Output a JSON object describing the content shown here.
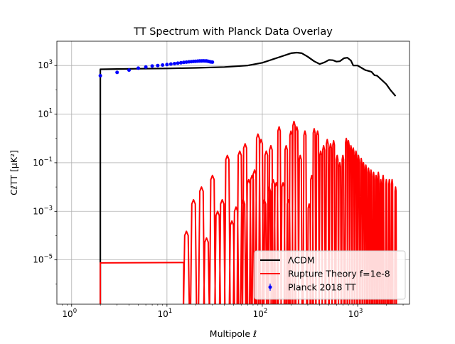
{
  "chart_data": {
    "type": "line",
    "title": "TT Spectrum with Planck Data Overlay",
    "xlabel": "Multipole ℓ",
    "ylabel": "CℓTT [μK²]",
    "xscale": "log",
    "yscale": "log",
    "xlim": [
      0.7,
      3500
    ],
    "ylim": [
      1.5e-07,
      10000.0
    ],
    "grid": true,
    "legend_position": "lower right",
    "x_ticks": [
      {
        "value": 1,
        "base": "10",
        "exp": "0"
      },
      {
        "value": 10,
        "base": "10",
        "exp": "1"
      },
      {
        "value": 100,
        "base": "10",
        "exp": "2"
      },
      {
        "value": 1000,
        "base": "10",
        "exp": "3"
      }
    ],
    "y_ticks": [
      {
        "value": 1e-05,
        "base": "10",
        "exp": "−5"
      },
      {
        "value": 0.001,
        "base": "10",
        "exp": "−3"
      },
      {
        "value": 0.1,
        "base": "10",
        "exp": "−1"
      },
      {
        "value": 10,
        "base": "10",
        "exp": "1"
      },
      {
        "value": 1000,
        "base": "10",
        "exp": "3"
      }
    ],
    "series": [
      {
        "name": "ΛCDM",
        "kind": "line",
        "color": "#000000",
        "points": [
          [
            2,
            1e-07
          ],
          [
            2,
            700
          ],
          [
            3,
            720
          ],
          [
            5,
            740
          ],
          [
            10,
            760
          ],
          [
            20,
            800
          ],
          [
            40,
            870
          ],
          [
            70,
            1000
          ],
          [
            100,
            1300
          ],
          [
            150,
            2200
          ],
          [
            200,
            3200
          ],
          [
            230,
            3400
          ],
          [
            260,
            3200
          ],
          [
            300,
            2300
          ],
          [
            350,
            1500
          ],
          [
            400,
            1150
          ],
          [
            450,
            1350
          ],
          [
            500,
            1700
          ],
          [
            550,
            1650
          ],
          [
            600,
            1450
          ],
          [
            650,
            1500
          ],
          [
            720,
            2000
          ],
          [
            780,
            2100
          ],
          [
            850,
            1600
          ],
          [
            900,
            1000
          ],
          [
            1000,
            1000
          ],
          [
            1100,
            800
          ],
          [
            1200,
            650
          ],
          [
            1300,
            600
          ],
          [
            1400,
            550
          ],
          [
            1500,
            400
          ],
          [
            1600,
            380
          ],
          [
            1800,
            250
          ],
          [
            2000,
            170
          ],
          [
            2200,
            100
          ],
          [
            2500,
            55
          ]
        ]
      },
      {
        "name": "Rupture Theory f=1e-8",
        "kind": "line",
        "color": "#ff0000",
        "plateau": [
          [
            2,
            1e-07
          ],
          [
            2,
            7.5e-06
          ],
          [
            15,
            7.8e-06
          ]
        ],
        "peaks": [
          [
            16,
            0.00015
          ],
          [
            19,
            0.003
          ],
          [
            23,
            0.01
          ],
          [
            26,
            8e-05
          ],
          [
            30,
            0.03
          ],
          [
            34,
            0.001
          ],
          [
            38,
            0.003
          ],
          [
            43,
            0.2
          ],
          [
            48,
            0.0004
          ],
          [
            53,
            0.0015
          ],
          [
            58,
            0.3
          ],
          [
            63,
            0.003
          ],
          [
            66,
            0.6
          ],
          [
            72,
            0.02
          ],
          [
            78,
            0.03
          ],
          [
            83,
            0.05
          ],
          [
            90,
            1.5
          ],
          [
            97,
            0.9
          ],
          [
            105,
            0.003
          ],
          [
            110,
            0.3
          ],
          [
            118,
            0.01
          ],
          [
            123,
            0.5
          ],
          [
            130,
            0.02
          ],
          [
            140,
            0.015
          ],
          [
            150,
            3
          ],
          [
            165,
            0.015
          ],
          [
            178,
            0.5
          ],
          [
            188,
            0.003
          ],
          [
            200,
            2
          ],
          [
            215,
            5
          ],
          [
            230,
            3
          ],
          [
            250,
            0.2
          ],
          [
            280,
            2
          ],
          [
            310,
            0.002
          ],
          [
            330,
            0.03
          ],
          [
            350,
            2.5
          ],
          [
            380,
            2
          ],
          [
            410,
            0.3
          ],
          [
            440,
            0.5
          ],
          [
            480,
            0.9
          ],
          [
            520,
            0.6
          ],
          [
            560,
            0.8
          ],
          [
            610,
            0.2
          ],
          [
            650,
            0.1
          ],
          [
            700,
            0.2
          ],
          [
            760,
            1
          ],
          [
            800,
            0.8
          ],
          [
            850,
            0.5
          ],
          [
            900,
            0.4
          ],
          [
            960,
            0.3
          ],
          [
            1020,
            0.2
          ],
          [
            1090,
            0.15
          ],
          [
            1150,
            0.1
          ],
          [
            1220,
            0.08
          ],
          [
            1300,
            0.06
          ],
          [
            1380,
            0.05
          ],
          [
            1470,
            0.04
          ],
          [
            1560,
            0.03
          ],
          [
            1650,
            0.04
          ],
          [
            1750,
            0.02
          ],
          [
            1850,
            0.03
          ],
          [
            2000,
            0.02
          ],
          [
            2150,
            0.02
          ],
          [
            2300,
            0.02
          ],
          [
            2500,
            0.01
          ]
        ]
      },
      {
        "name": "Planck 2018 TT",
        "kind": "errorbar",
        "color": "#0000ff",
        "x": [
          2,
          3,
          4,
          5,
          6,
          7,
          8,
          9,
          10,
          11,
          12,
          13,
          14,
          15,
          16,
          17,
          18,
          19,
          20,
          21,
          22,
          23,
          24,
          25,
          26,
          27,
          28,
          29,
          30
        ],
        "y": [
          380,
          520,
          650,
          780,
          870,
          950,
          1000,
          1050,
          1100,
          1150,
          1200,
          1250,
          1300,
          1350,
          1380,
          1420,
          1450,
          1480,
          1500,
          1520,
          1540,
          1550,
          1560,
          1550,
          1540,
          1500,
          1450,
          1400,
          1380
        ]
      }
    ]
  }
}
